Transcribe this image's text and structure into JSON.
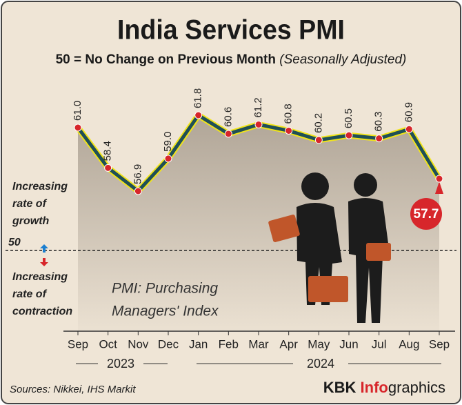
{
  "chart_data": {
    "type": "line",
    "title": "India Services PMI",
    "subtitle": "50 = No Change on Previous Month",
    "subtitle_note": "(Seasonally Adjusted)",
    "categories": [
      "Sep",
      "Oct",
      "Nov",
      "Dec",
      "Jan",
      "Feb",
      "Mar",
      "Apr",
      "May",
      "Jun",
      "Jul",
      "Aug",
      "Sep"
    ],
    "values": [
      61.0,
      58.4,
      56.9,
      59.0,
      61.8,
      60.6,
      61.2,
      60.8,
      60.2,
      60.5,
      60.3,
      60.9,
      57.7
    ],
    "value_labels": [
      "61.0",
      "58.4",
      "56.9",
      "59.0",
      "61.8",
      "60.6",
      "61.2",
      "60.8",
      "60.2",
      "60.5",
      "60.3",
      "60.9",
      "57.7"
    ],
    "color": "#1f4f57",
    "outline_color": "#f1e41a",
    "marker_color": "#d7262b",
    "years": [
      "2023",
      "2024"
    ],
    "growth_label": [
      "Increasing",
      "rate of",
      "growth"
    ],
    "baseline_label": "50",
    "contraction_label": [
      "Increasing",
      "rate of",
      "contraction"
    ],
    "note": [
      "PMI: Purchasing",
      "Managers' Index"
    ],
    "source": "Sources: Nikkei, IHS Markit",
    "brand": {
      "first": "KBK",
      "highlight": "Info",
      "rest": "graphics"
    }
  }
}
